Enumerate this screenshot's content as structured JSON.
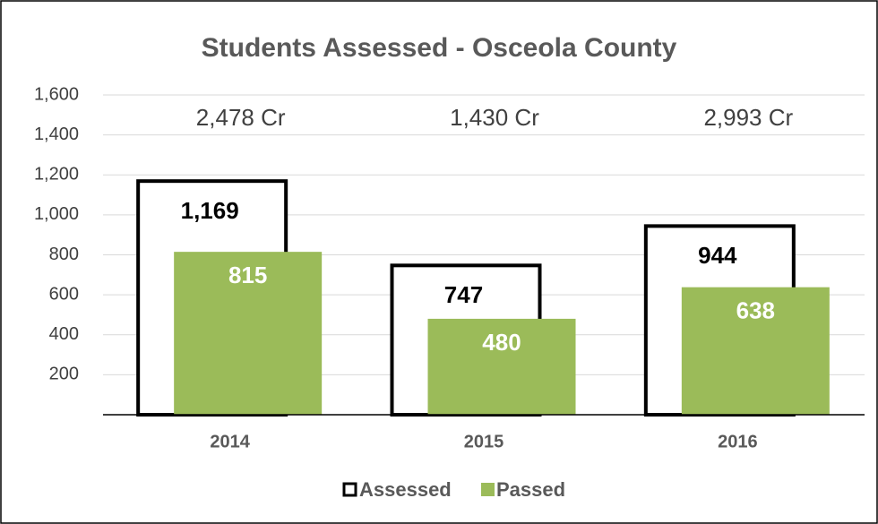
{
  "chart_data": {
    "type": "bar",
    "title": "Students Assessed - Osceola County",
    "categories": [
      "2014",
      "2015",
      "2016"
    ],
    "series": [
      {
        "name": "Assessed",
        "color": "#000000",
        "values": [
          1169,
          747,
          944
        ],
        "value_labels": [
          "1,169",
          "747",
          "944"
        ]
      },
      {
        "name": "Passed",
        "color": "#9bbb59",
        "values": [
          815,
          480,
          638
        ],
        "value_labels": [
          "815",
          "480",
          "638"
        ]
      }
    ],
    "annotations": [
      "2,478 Cr",
      "1,430 Cr",
      "2,993 Cr"
    ],
    "ylim": [
      0,
      1600
    ],
    "yticks": [
      200,
      400,
      600,
      800,
      {
        "value": 1000,
        "label": "1,000"
      },
      {
        "value": 1200,
        "label": "1,200"
      },
      {
        "value": 1400,
        "label": "1,400"
      },
      {
        "value": 1600,
        "label": "1,600"
      }
    ],
    "grid": true,
    "legend": "bottom"
  }
}
